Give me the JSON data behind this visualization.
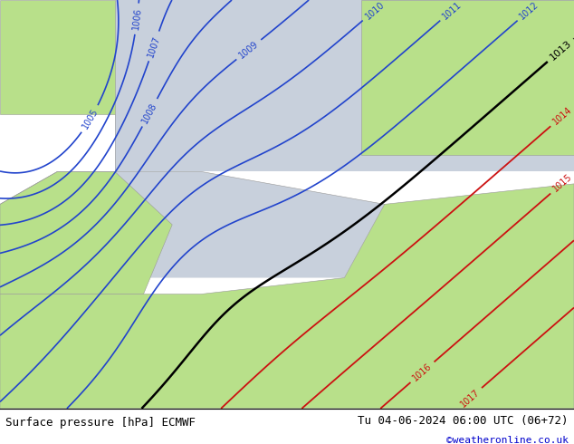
{
  "title_left": "Surface pressure [hPa] ECMWF",
  "title_right": "Tu 04-06-2024 06:00 UTC (06+72)",
  "credit": "©weatheronline.co.uk",
  "land_color": "#b8e08a",
  "sea_color": "#c8d0dc",
  "blue_contours": [
    1005,
    1006,
    1007,
    1008,
    1009,
    1010,
    1011,
    1012
  ],
  "black_contours": [
    1013
  ],
  "red_contours": [
    1014,
    1015,
    1016,
    1017
  ],
  "bottom_bar_color": "#ffffff",
  "font_size_bottom": 9,
  "credit_color": "#0000cc"
}
